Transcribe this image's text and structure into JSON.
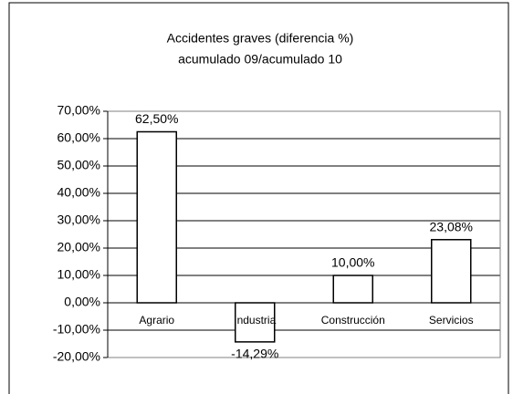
{
  "chart_data": {
    "type": "bar",
    "title": [
      "Accidentes graves (diferencia %)",
      "acumulado 09/acumulado 10"
    ],
    "categories": [
      "Agrario",
      "Industria",
      "Construcción",
      "Servicios"
    ],
    "values": [
      62.5,
      -14.29,
      10,
      23.08
    ],
    "value_labels": [
      "62,50%",
      "-14,29%",
      "10,00%",
      "23,08%"
    ],
    "color": "#ffffff",
    "ylim": [
      -20,
      70
    ],
    "yticks": [
      {
        "value": -20,
        "label": "-20,00%"
      },
      {
        "value": -10,
        "label": "-10,00%"
      },
      {
        "value": 0,
        "label": "0,00%"
      },
      {
        "value": 10,
        "label": "10,00%"
      },
      {
        "value": 20,
        "label": "20,00%"
      },
      {
        "value": 30,
        "label": "30,00%"
      },
      {
        "value": 40,
        "label": "40,00%"
      },
      {
        "value": 50,
        "label": "50,00%"
      },
      {
        "value": 60,
        "label": "60,00%"
      },
      {
        "value": 70,
        "label": "70,00%"
      }
    ],
    "grid": true
  }
}
